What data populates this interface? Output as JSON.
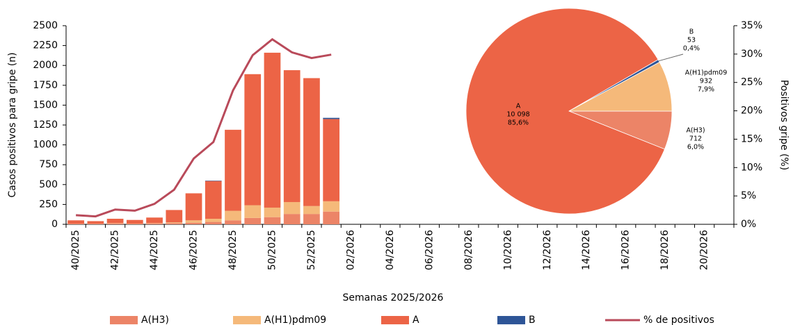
{
  "chart_data": [
    {
      "type": "bar",
      "x_label": "Semanas 2025/2026",
      "y_label": "Casos positivos para gripe (n)",
      "y2_label": "Positivos gripe (%)",
      "categories": [
        "40/2025",
        null,
        "42/2025",
        null,
        "44/2025",
        null,
        "46/2025",
        null,
        "48/2025",
        null,
        "50/2025",
        null,
        "52/2025",
        null,
        "02/2026",
        null,
        "04/2026",
        null,
        "06/2026",
        null,
        "08/2026",
        null,
        "10/2026",
        null,
        "12/2026",
        null,
        "14/2026",
        null,
        "16/2026",
        null,
        "18/2026",
        null,
        "20/2026",
        null
      ],
      "series": [
        {
          "name": "A(H3)",
          "type": "bar",
          "color": "#ec8467",
          "values": [
            5,
            5,
            10,
            5,
            10,
            15,
            20,
            30,
            50,
            80,
            90,
            130,
            130,
            160,
            null,
            null,
            null,
            null,
            null,
            null,
            null,
            null,
            null,
            null,
            null,
            null,
            null,
            null,
            null,
            null,
            null,
            null,
            null,
            null
          ]
        },
        {
          "name": "A(H1)pdm09",
          "type": "bar",
          "color": "#f5b97a",
          "values": [
            2,
            2,
            5,
            3,
            5,
            10,
            30,
            40,
            120,
            160,
            120,
            150,
            100,
            130,
            null,
            null,
            null,
            null,
            null,
            null,
            null,
            null,
            null,
            null,
            null,
            null,
            null,
            null,
            null,
            null,
            null,
            null,
            null,
            null
          ]
        },
        {
          "name": "A",
          "type": "bar",
          "color": "#ec6446",
          "values": [
            43,
            33,
            55,
            47,
            70,
            155,
            340,
            475,
            1020,
            1650,
            1950,
            1660,
            1610,
            1035,
            null,
            null,
            null,
            null,
            null,
            null,
            null,
            null,
            null,
            null,
            null,
            null,
            null,
            null,
            null,
            null,
            null,
            null,
            null,
            null
          ]
        },
        {
          "name": "B",
          "type": "bar",
          "color": "#2e5597",
          "values": [
            0,
            0,
            0,
            0,
            0,
            0,
            0,
            5,
            0,
            0,
            0,
            0,
            0,
            15,
            null,
            null,
            null,
            null,
            null,
            null,
            null,
            null,
            null,
            null,
            null,
            null,
            null,
            null,
            null,
            null,
            null,
            null,
            null,
            null
          ]
        },
        {
          "name": "% de positivos",
          "type": "line",
          "axis": "y2",
          "color": "#b94a5a",
          "values": [
            1.6,
            1.4,
            2.6,
            2.4,
            3.6,
            6.1,
            11.6,
            14.5,
            23.6,
            29.8,
            32.6,
            30.3,
            29.3,
            29.9,
            null,
            null,
            null,
            null,
            null,
            null,
            null,
            null,
            null,
            null,
            null,
            null,
            null,
            null,
            null,
            null,
            null,
            null,
            null,
            null
          ]
        }
      ],
      "ylim": [
        0,
        2500
      ],
      "yticks": [
        0,
        250,
        500,
        750,
        1000,
        1250,
        1500,
        1750,
        2000,
        2250,
        2500
      ],
      "y2lim": [
        0,
        35
      ],
      "y2ticks": [
        {
          "value": 0,
          "label": "0%"
        },
        {
          "value": 5,
          "label": "5%"
        },
        {
          "value": 10,
          "label": "10%"
        },
        {
          "value": 15,
          "label": "15%"
        },
        {
          "value": 20,
          "label": "20%"
        },
        {
          "value": 25,
          "label": "25%"
        },
        {
          "value": 30,
          "label": "30%"
        },
        {
          "value": 35,
          "label": "35%"
        }
      ],
      "legend": "bottom"
    },
    {
      "type": "pie",
      "categories": [
        "A(H3)",
        "A",
        "B",
        "A(H1)pdm09"
      ],
      "values": [
        712,
        10098,
        53,
        932
      ],
      "value_labels": [
        "712",
        "10 098",
        "53",
        "932"
      ],
      "percent_labels": [
        "6,0%",
        "85,6%",
        "0,4%",
        "7,9%"
      ],
      "colors": [
        "#ec8467",
        "#ec6446",
        "#2e5597",
        "#f5b97a"
      ]
    }
  ]
}
